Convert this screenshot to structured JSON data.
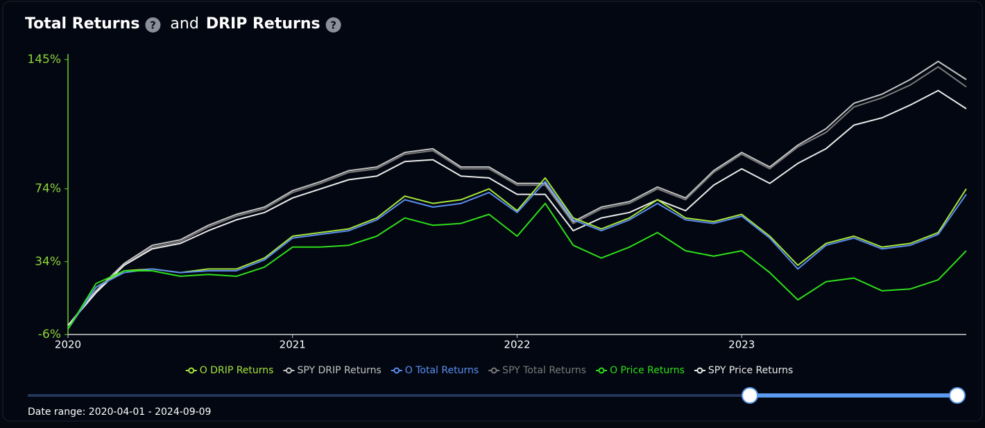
{
  "title_left": "Total Returns",
  "title_joiner": "and",
  "title_right": "DRIP Returns",
  "help_icon": "?",
  "date_range": "Date range: 2020-04-01 - 2024-09-09",
  "chart_data": {
    "type": "line",
    "x": [
      2020,
      2020.125,
      2020.25,
      2020.375,
      2020.5,
      2020.625,
      2020.75,
      2020.875,
      2021,
      2021.125,
      2021.25,
      2021.375,
      2021.5,
      2021.625,
      2021.75,
      2021.875,
      2022,
      2022.125,
      2022.25,
      2022.375,
      2022.5,
      2022.625,
      2022.75,
      2022.875,
      2023,
      2023.125,
      2023.25,
      2023.375,
      2023.5,
      2023.625,
      2023.75,
      2023.875,
      2024
    ],
    "xlim": [
      2020,
      2024
    ],
    "xticks": [
      2020,
      2021,
      2022,
      2023
    ],
    "ylim": [
      -6,
      145
    ],
    "yticks": [
      {
        "value": -6,
        "label": "-6%"
      },
      {
        "value": 34,
        "label": "34%"
      },
      {
        "value": 74,
        "label": "74%"
      },
      {
        "value": 145,
        "label": "145%"
      }
    ],
    "series": [
      {
        "name": "O DRIP Returns",
        "color": "#a8e63c",
        "values": [
          -3,
          20,
          29,
          30,
          28,
          30,
          30,
          36,
          48,
          50,
          52,
          58,
          70,
          66,
          68,
          74,
          62,
          80,
          58,
          52,
          58,
          68,
          58,
          56,
          60,
          48,
          32,
          44,
          48,
          42,
          44,
          50,
          74
        ]
      },
      {
        "name": "SPY DRIP Returns",
        "color": "#c4c4c4",
        "values": [
          -1,
          18,
          33,
          43,
          46,
          54,
          60,
          64,
          73,
          78,
          84,
          86,
          94,
          96,
          86,
          86,
          77,
          77,
          56,
          64,
          67,
          75,
          69,
          84,
          94,
          86,
          98,
          107,
          121,
          126,
          134,
          144,
          134
        ]
      },
      {
        "name": "O Total Returns",
        "color": "#5b8ef0",
        "values": [
          -3,
          20,
          28,
          30,
          28,
          29,
          29,
          35,
          47,
          49,
          51,
          57,
          68,
          64,
          66,
          72,
          61,
          78,
          57,
          51,
          57,
          66,
          57,
          55,
          59,
          47,
          30,
          43,
          47,
          41,
          43,
          49,
          71
        ]
      },
      {
        "name": "SPY Total Returns",
        "color": "#7a7a7a",
        "values": [
          -1,
          17,
          32,
          42,
          45,
          53,
          59,
          63,
          72,
          77,
          83,
          85,
          93,
          95,
          85,
          85,
          76,
          76,
          55,
          63,
          66,
          74,
          68,
          83,
          93,
          85,
          97,
          105,
          119,
          124,
          131,
          141,
          130
        ]
      },
      {
        "name": "O Price Returns",
        "color": "#2ee01a",
        "values": [
          -3,
          22,
          29,
          29,
          26,
          27,
          26,
          31,
          42,
          42,
          43,
          48,
          58,
          54,
          55,
          60,
          48,
          66,
          43,
          36,
          42,
          50,
          40,
          37,
          40,
          28,
          13,
          23,
          25,
          18,
          19,
          24,
          40
        ]
      },
      {
        "name": "SPY Price Returns",
        "color": "#ececec",
        "values": [
          -1,
          17,
          32,
          41,
          44,
          51,
          57,
          61,
          69,
          74,
          79,
          81,
          89,
          90,
          81,
          80,
          71,
          71,
          51,
          58,
          61,
          68,
          62,
          76,
          85,
          77,
          88,
          96,
          109,
          113,
          120,
          128,
          118
        ]
      }
    ]
  }
}
